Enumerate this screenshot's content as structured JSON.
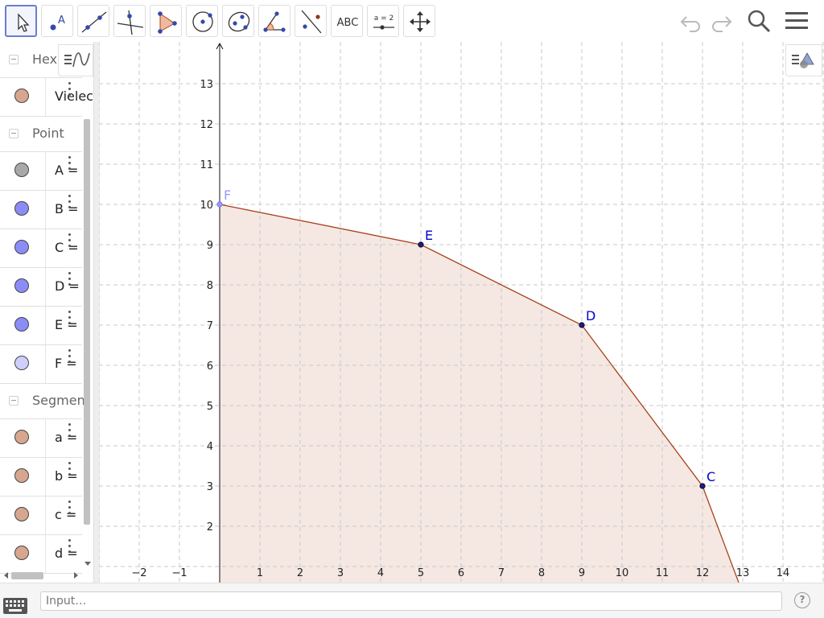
{
  "toolbar": {
    "tools": [
      "Move",
      "Point",
      "Line",
      "Perpendicular Line",
      "Polygon",
      "Circle with Center",
      "Ellipse",
      "Angle",
      "Reflect about Line",
      "Text",
      "Slider",
      "Move Graphics View"
    ],
    "text_tool_label": "ABC",
    "slider_tool_label": "a = 2"
  },
  "algebra": {
    "rows": [
      {
        "type": "group",
        "label": "Hexagon"
      },
      {
        "type": "item",
        "label": "Vieleck",
        "color": "#d7a68e"
      },
      {
        "type": "group",
        "label": "Point"
      },
      {
        "type": "item",
        "label": "A =",
        "color": "#a8a8a8"
      },
      {
        "type": "item",
        "label": "B =",
        "color": "#8c8cf7"
      },
      {
        "type": "item",
        "label": "C =",
        "color": "#8c8cf7"
      },
      {
        "type": "item",
        "label": "D =",
        "color": "#8c8cf7"
      },
      {
        "type": "item",
        "label": "E =",
        "color": "#8c8cf7"
      },
      {
        "type": "item",
        "label": "F =",
        "color": "#cfcffc"
      },
      {
        "type": "group",
        "label": "Segment"
      },
      {
        "type": "item",
        "label": "a =",
        "color": "#d7a68e"
      },
      {
        "type": "item",
        "label": "b =",
        "color": "#d7a68e"
      },
      {
        "type": "item",
        "label": "c =",
        "color": "#d7a68e"
      },
      {
        "type": "item",
        "label": "d =",
        "color": "#d7a68e"
      }
    ]
  },
  "graphics": {
    "x_range": [
      -3,
      15
    ],
    "y_range": [
      0.6,
      13.6
    ],
    "x_ticks": [
      -2,
      -1,
      1,
      2,
      3,
      4,
      5,
      6,
      7,
      8,
      9,
      10,
      11,
      12,
      13,
      14
    ],
    "y_ticks": [
      2,
      3,
      4,
      5,
      6,
      7,
      8,
      9,
      10,
      11,
      12,
      13
    ],
    "points": [
      {
        "name": "F",
        "x": 0,
        "y": 10,
        "color": "#9999ff",
        "label_color": "#9999ff"
      },
      {
        "name": "E",
        "x": 5,
        "y": 9,
        "color": "#1c1c8c",
        "label_color": "#0000cc"
      },
      {
        "name": "D",
        "x": 9,
        "y": 7,
        "color": "#1c1c8c",
        "label_color": "#0000cc"
      },
      {
        "name": "C",
        "x": 12,
        "y": 3,
        "color": "#1c1c8c",
        "label_color": "#0000cc"
      }
    ],
    "polygon": [
      [
        0,
        10
      ],
      [
        5,
        9
      ],
      [
        9,
        7
      ],
      [
        12,
        3
      ],
      [
        12.9,
        0.6
      ],
      [
        0,
        0.6
      ]
    ],
    "polygon_fill": "#f5e8e3",
    "polygon_stroke": "#a8421b"
  },
  "input": {
    "placeholder": "Input…"
  },
  "help_label": "?"
}
